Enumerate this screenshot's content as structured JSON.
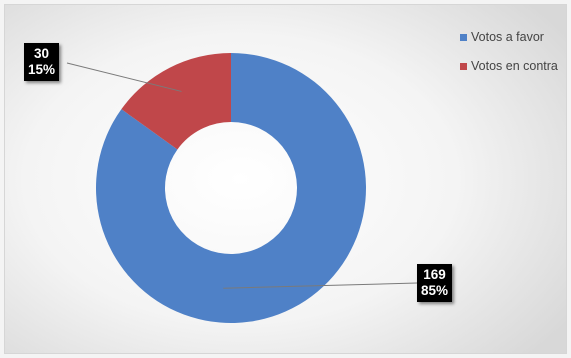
{
  "chart_data": {
    "type": "pie",
    "donut": true,
    "series": [
      {
        "name": "Votos a favor",
        "value": 169,
        "percent": "85%",
        "color": "#4f81c7"
      },
      {
        "name": "Votos en contra",
        "value": 30,
        "percent": "15%",
        "color": "#c0474a"
      }
    ],
    "legend_position": "top-right"
  },
  "labels": [
    {
      "value": "169",
      "percent": "85%"
    },
    {
      "value": "30",
      "percent": "15%"
    }
  ],
  "legend": [
    {
      "label": "Votos a favor",
      "color": "#4f81c7"
    },
    {
      "label": "Votos en contra",
      "color": "#c0474a"
    }
  ]
}
